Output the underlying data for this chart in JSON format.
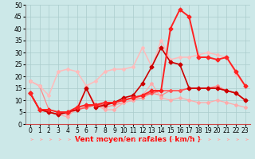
{
  "xlabel": "Vent moyen/en rafales ( km/h )",
  "x": [
    0,
    1,
    2,
    3,
    4,
    5,
    6,
    7,
    8,
    9,
    10,
    11,
    12,
    13,
    14,
    15,
    16,
    17,
    18,
    19,
    20,
    21,
    22,
    23
  ],
  "series": [
    {
      "color": "#ff8888",
      "lw": 0.9,
      "marker": "D",
      "markersize": 2.0,
      "y": [
        18,
        16,
        6,
        5,
        4,
        6,
        7,
        8,
        7,
        8,
        9,
        10,
        11,
        13,
        12,
        14,
        14,
        15,
        15,
        15,
        16,
        14,
        13,
        10
      ]
    },
    {
      "color": "#ffaaaa",
      "lw": 0.9,
      "marker": "D",
      "markersize": 2.0,
      "y": [
        13,
        6,
        5,
        4,
        3,
        7,
        15,
        8,
        6,
        6,
        9,
        10,
        12,
        17,
        11,
        10,
        11,
        10,
        9,
        9,
        10,
        9,
        8,
        7
      ]
    },
    {
      "color": "#ffbbbb",
      "lw": 1.1,
      "marker": "D",
      "markersize": 2.0,
      "y": [
        18,
        16,
        12,
        22,
        23,
        22,
        16,
        18,
        22,
        23,
        23,
        24,
        32,
        24,
        35,
        27,
        28,
        28,
        29,
        30,
        29,
        28,
        21,
        16
      ]
    },
    {
      "color": "#ff5555",
      "lw": 1.2,
      "marker": "D",
      "markersize": 2.0,
      "y": [
        13,
        6,
        5,
        4,
        5,
        6,
        7,
        8,
        8,
        9,
        10,
        11,
        12,
        13,
        14,
        14,
        14,
        15,
        15,
        15,
        15,
        14,
        13,
        10
      ]
    },
    {
      "color": "#cc0000",
      "lw": 1.2,
      "marker": "D",
      "markersize": 2.5,
      "y": [
        13,
        6,
        5,
        4,
        5,
        6,
        15,
        7,
        8,
        9,
        11,
        12,
        17,
        24,
        32,
        26,
        25,
        15,
        15,
        15,
        15,
        14,
        13,
        10
      ]
    },
    {
      "color": "#ff2222",
      "lw": 1.4,
      "marker": "D",
      "markersize": 2.5,
      "y": [
        13,
        6,
        6,
        5,
        5,
        7,
        8,
        8,
        9,
        9,
        10,
        11,
        12,
        14,
        14,
        40,
        48,
        45,
        28,
        28,
        27,
        28,
        22,
        16
      ]
    }
  ],
  "ylim": [
    0,
    50
  ],
  "yticks": [
    0,
    5,
    10,
    15,
    20,
    25,
    30,
    35,
    40,
    45,
    50
  ],
  "xlim": [
    -0.5,
    23.5
  ],
  "xticks": [
    0,
    1,
    2,
    3,
    4,
    5,
    6,
    7,
    8,
    9,
    10,
    11,
    12,
    13,
    14,
    15,
    16,
    17,
    18,
    19,
    20,
    21,
    22,
    23
  ],
  "bg_color": "#cce8e8",
  "grid_color": "#aacccc",
  "tick_fontsize": 5.5,
  "xlabel_fontsize": 6.5,
  "arrow_color": "#ffaaaa"
}
